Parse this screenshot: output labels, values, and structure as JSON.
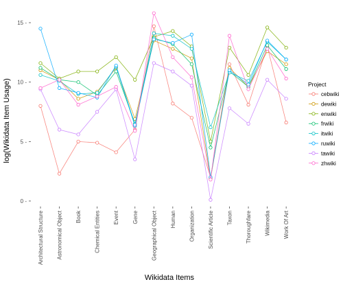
{
  "chart_data": {
    "type": "line",
    "xlabel": "Wikidata Items",
    "ylabel": "log(Wikidata Item Usage)",
    "ylim": [
      -0.5,
      16
    ],
    "yticks": [
      0,
      5,
      10,
      15
    ],
    "grid": false,
    "legend_position": "right",
    "legend_title": "Project",
    "categories": [
      "Architectural Structure",
      "Astronomical Object",
      "Book",
      "Chemical Entities",
      "Event",
      "Gene",
      "Geographical Object",
      "Human",
      "Organization",
      "Scientific Article",
      "Taxon",
      "Thoroughfare",
      "Wikimedia",
      "Work Of Art"
    ],
    "series": [
      {
        "name": "cebwiki",
        "color": "#F8766D",
        "values": [
          8.0,
          2.3,
          5.0,
          4.9,
          4.1,
          6.0,
          14.7,
          8.2,
          7.0,
          2.0,
          11.5,
          8.1,
          13.0,
          6.6
        ]
      },
      {
        "name": "dewiki",
        "color": "#CD9600",
        "values": [
          11.0,
          10.2,
          8.6,
          9.2,
          11.2,
          6.9,
          13.5,
          12.8,
          12.0,
          1.9,
          11.2,
          9.6,
          12.6,
          11.5
        ]
      },
      {
        "name": "enwiki",
        "color": "#7CAE00",
        "values": [
          11.6,
          10.3,
          10.9,
          10.9,
          12.1,
          10.2,
          13.8,
          14.3,
          13.0,
          5.0,
          12.9,
          10.6,
          14.6,
          12.9
        ]
      },
      {
        "name": "frwiki",
        "color": "#00BE67",
        "values": [
          11.2,
          10.2,
          10.0,
          8.9,
          10.9,
          6.5,
          13.7,
          13.2,
          11.5,
          4.5,
          10.9,
          9.6,
          13.1,
          11.1
        ]
      },
      {
        "name": "itwiki",
        "color": "#00BFC4",
        "values": [
          10.6,
          10.1,
          9.0,
          9.1,
          11.3,
          6.3,
          14.1,
          13.9,
          12.8,
          6.2,
          10.8,
          10.1,
          13.4,
          11.9
        ]
      },
      {
        "name": "ruwiki",
        "color": "#00A9FF",
        "values": [
          14.5,
          9.5,
          9.1,
          8.7,
          11.4,
          6.4,
          13.6,
          13.3,
          14.0,
          2.0,
          11.0,
          9.8,
          13.5,
          11.9
        ]
      },
      {
        "name": "tawiki",
        "color": "#C77CFF",
        "values": [
          9.4,
          6.0,
          5.6,
          7.5,
          9.4,
          3.5,
          11.6,
          10.9,
          9.7,
          0.1,
          7.8,
          6.5,
          10.2,
          8.6
        ]
      },
      {
        "name": "zhwiki",
        "color": "#FF61CC",
        "values": [
          9.5,
          10.2,
          8.1,
          8.8,
          9.6,
          5.9,
          15.8,
          12.1,
          10.4,
          1.8,
          13.9,
          9.4,
          12.8,
          10.3
        ]
      }
    ]
  }
}
